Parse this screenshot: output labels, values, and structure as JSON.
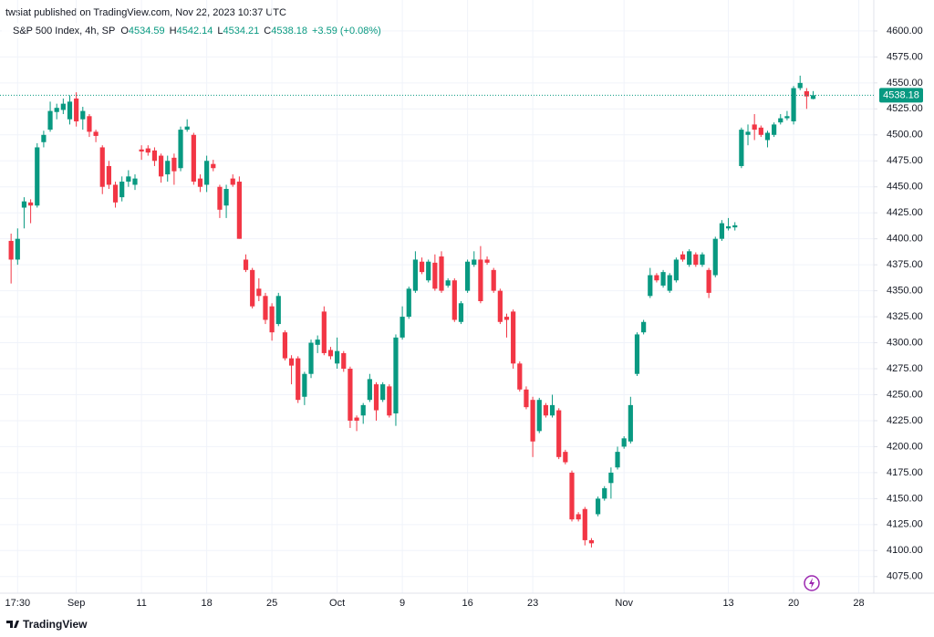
{
  "header": {
    "published": "twsiat published on TradingView.com, Nov 22, 2023 10:37 UTC",
    "symbol": "S&P 500 Index, 4h, SP",
    "legend_labels": [
      "O",
      "H",
      "L",
      "C"
    ],
    "change": "+3.59 (+0.08%)"
  },
  "footer": {
    "brand": "TradingView"
  },
  "chart_data": {
    "type": "candlestick",
    "up_color": "#089981",
    "down_color": "#f23645",
    "grid": true,
    "open": [
      4398,
      4380,
      4430,
      4435,
      4432,
      4493,
      4505,
      4522,
      4524,
      4515,
      4535,
      4515,
      4518,
      4503,
      4488,
      4470,
      4452,
      4440,
      4455,
      4452,
      4486,
      4487,
      4485,
      4480,
      4462,
      4478,
      4468,
      4505,
      4500,
      4458,
      4452,
      4472,
      4450,
      4432,
      4458,
      4455,
      4380,
      4370,
      4352,
      4345,
      4335,
      4318,
      4310,
      4285,
      4285,
      4248,
      4270,
      4298,
      4330,
      4293,
      4280,
      4290,
      4275,
      4228,
      4230,
      4245,
      4260,
      4245,
      4258,
      4232,
      4305,
      4325,
      4350,
      4378,
      4360,
      4377,
      4383,
      4355,
      4360,
      4320,
      4350,
      4375,
      4380,
      4380,
      4370,
      4350,
      4325,
      4330,
      4280,
      4255,
      4245,
      4215,
      4240,
      4230,
      4235,
      4195,
      4175,
      4135,
      4140,
      4110,
      4135,
      4150,
      4165,
      4180,
      4200,
      4205,
      4270,
      4310,
      4345,
      4365,
      4355,
      4350,
      4360,
      4385,
      4375,
      4385,
      4375,
      4370,
      4365,
      4400,
      4410,
      4411,
      4470,
      4500,
      4510,
      4507,
      4495,
      4500,
      4512,
      4516,
      4513,
      4545,
      4542,
      4534.59
    ],
    "high": [
      4405,
      4410,
      4440,
      4438,
      4492,
      4504,
      4532,
      4530,
      4535,
      4538,
      4541,
      4527,
      4520,
      4505,
      4490,
      4475,
      4455,
      4460,
      4466,
      4462,
      4490,
      4490,
      4488,
      4482,
      4480,
      4482,
      4508,
      4515,
      4502,
      4462,
      4480,
      4476,
      4452,
      4452,
      4462,
      4460,
      4385,
      4372,
      4362,
      4348,
      4338,
      4348,
      4312,
      4288,
      4287,
      4272,
      4303,
      4307,
      4335,
      4296,
      4305,
      4292,
      4277,
      4230,
      4242,
      4270,
      4262,
      4262,
      4260,
      4308,
      4335,
      4354,
      4388,
      4382,
      4380,
      4385,
      4388,
      4362,
      4362,
      4340,
      4380,
      4388,
      4393,
      4383,
      4372,
      4352,
      4328,
      4332,
      4282,
      4258,
      4248,
      4247,
      4242,
      4250,
      4237,
      4197,
      4177,
      4137,
      4142,
      4112,
      4152,
      4162,
      4180,
      4200,
      4210,
      4248,
      4310,
      4322,
      4372,
      4367,
      4370,
      4367,
      4382,
      4388,
      4390,
      4387,
      4387,
      4372,
      4402,
      4418,
      4420,
      4416,
      4507,
      4510,
      4520,
      4509,
      4504,
      4512,
      4520,
      4523,
      4547,
      4557,
      4545,
      4542.14
    ],
    "low": [
      4357,
      4375,
      4410,
      4415,
      4430,
      4488,
      4503,
      4515,
      4520,
      4510,
      4508,
      4505,
      4498,
      4493,
      4443,
      4448,
      4430,
      4436,
      4450,
      4447,
      4476,
      4480,
      4470,
      4454,
      4455,
      4452,
      4465,
      4503,
      4452,
      4445,
      4445,
      4465,
      4420,
      4420,
      4450,
      4400,
      4368,
      4333,
      4340,
      4318,
      4302,
      4316,
      4283,
      4260,
      4242,
      4240,
      4266,
      4290,
      4288,
      4284,
      4275,
      4272,
      4218,
      4215,
      4222,
      4243,
      4225,
      4243,
      4228,
      4220,
      4303,
      4323,
      4348,
      4366,
      4358,
      4350,
      4348,
      4353,
      4320,
      4318,
      4348,
      4373,
      4338,
      4375,
      4348,
      4318,
      4305,
      4275,
      4253,
      4236,
      4190,
      4213,
      4228,
      4228,
      4188,
      4183,
      4128,
      4128,
      4105,
      4103,
      4133,
      4148,
      4150,
      4178,
      4198,
      4203,
      4268,
      4308,
      4343,
      4358,
      4353,
      4348,
      4358,
      4378,
      4373,
      4373,
      4373,
      4343,
      4363,
      4398,
      4408,
      4408,
      4468,
      4490,
      4495,
      4498,
      4488,
      4498,
      4510,
      4514,
      4510,
      4543,
      4525,
      4534.21
    ],
    "close": [
      4380,
      4400,
      4436,
      4432,
      4488,
      4500,
      4523,
      4526,
      4530,
      4532,
      4513,
      4523,
      4503,
      4499,
      4450,
      4452,
      4435,
      4455,
      4460,
      4458,
      4484,
      4483,
      4475,
      4460,
      4475,
      4465,
      4505,
      4508,
      4455,
      4450,
      4475,
      4468,
      4428,
      4448,
      4452,
      4400,
      4370,
      4335,
      4345,
      4322,
      4310,
      4345,
      4285,
      4278,
      4245,
      4270,
      4300,
      4303,
      4290,
      4287,
      4292,
      4275,
      4225,
      4225,
      4240,
      4265,
      4235,
      4260,
      4230,
      4305,
      4325,
      4352,
      4380,
      4368,
      4378,
      4352,
      4350,
      4360,
      4322,
      4338,
      4378,
      4380,
      4340,
      4377,
      4350,
      4320,
      4322,
      4280,
      4255,
      4238,
      4205,
      4245,
      4230,
      4240,
      4190,
      4185,
      4130,
      4130,
      4110,
      4107,
      4150,
      4160,
      4175,
      4195,
      4208,
      4240,
      4308,
      4320,
      4365,
      4360,
      4368,
      4365,
      4380,
      4380,
      4388,
      4375,
      4385,
      4348,
      4400,
      4415,
      4412,
      4413,
      4505,
      4503,
      4505,
      4500,
      4502,
      4510,
      4516,
      4518,
      4545,
      4550,
      4537,
      4538.18
    ],
    "xlim": [
      -1.7,
      132.3
    ],
    "ylim": [
      4059,
      4621
    ],
    "xticks": [
      {
        "value": 1,
        "label": "17:30"
      },
      {
        "value": 10,
        "label": "Sep"
      },
      {
        "value": 20,
        "label": "11"
      },
      {
        "value": 30,
        "label": "18"
      },
      {
        "value": 40,
        "label": "25"
      },
      {
        "value": 50,
        "label": "Oct"
      },
      {
        "value": 60,
        "label": "9"
      },
      {
        "value": 70,
        "label": "16"
      },
      {
        "value": 80,
        "label": "23"
      },
      {
        "value": 94,
        "label": "Nov"
      },
      {
        "value": 110,
        "label": "13"
      },
      {
        "value": 120,
        "label": "20"
      },
      {
        "value": 130,
        "label": "28"
      }
    ],
    "yticks": [
      {
        "value": 4075,
        "label": "4075.00"
      },
      {
        "value": 4100,
        "label": "4100.00"
      },
      {
        "value": 4125,
        "label": "4125.00"
      },
      {
        "value": 4150,
        "label": "4150.00"
      },
      {
        "value": 4175,
        "label": "4175.00"
      },
      {
        "value": 4200,
        "label": "4200.00"
      },
      {
        "value": 4225,
        "label": "4225.00"
      },
      {
        "value": 4250,
        "label": "4250.00"
      },
      {
        "value": 4275,
        "label": "4275.00"
      },
      {
        "value": 4300,
        "label": "4300.00"
      },
      {
        "value": 4325,
        "label": "4325.00"
      },
      {
        "value": 4350,
        "label": "4350.00"
      },
      {
        "value": 4375,
        "label": "4375.00"
      },
      {
        "value": 4400,
        "label": "4400.00"
      },
      {
        "value": 4425,
        "label": "4425.00"
      },
      {
        "value": 4450,
        "label": "4450.00"
      },
      {
        "value": 4475,
        "label": "4475.00"
      },
      {
        "value": 4500,
        "label": "4500.00"
      },
      {
        "value": 4525,
        "label": "4525.00"
      },
      {
        "value": 4550,
        "label": "4550.00"
      },
      {
        "value": 4575,
        "label": "4575.00"
      },
      {
        "value": 4600,
        "label": "4600.00"
      }
    ]
  }
}
